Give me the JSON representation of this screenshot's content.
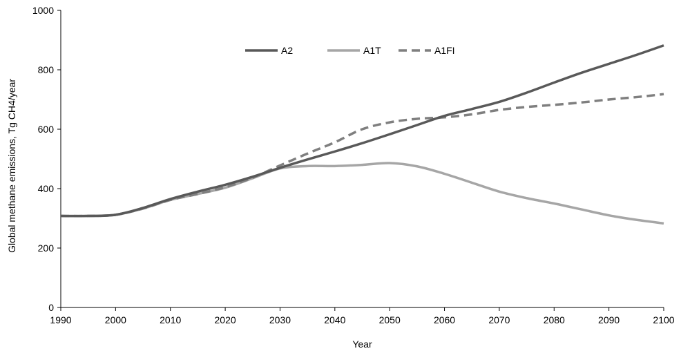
{
  "chart_data": {
    "type": "line",
    "title": "",
    "xlabel": "Year",
    "ylabel": "Global methane emissions, Tg CH4/year",
    "xlim": [
      1990,
      2100
    ],
    "ylim": [
      0,
      1000
    ],
    "x_ticks": [
      1990,
      2000,
      2010,
      2020,
      2030,
      2040,
      2050,
      2060,
      2070,
      2080,
      2090,
      2100
    ],
    "y_ticks": [
      0,
      200,
      400,
      600,
      800,
      1000
    ],
    "grid": false,
    "legend_position": "top-center",
    "x": [
      1990,
      1995,
      2000,
      2005,
      2010,
      2015,
      2020,
      2025,
      2030,
      2035,
      2040,
      2045,
      2050,
      2055,
      2060,
      2065,
      2070,
      2075,
      2080,
      2085,
      2090,
      2095,
      2100
    ],
    "series": [
      {
        "name": "A2",
        "color": "#595959",
        "dash": "solid",
        "values": [
          308,
          308,
          312,
          335,
          365,
          390,
          413,
          440,
          470,
          498,
          525,
          553,
          583,
          614,
          645,
          668,
          692,
          723,
          757,
          790,
          820,
          850,
          882
        ]
      },
      {
        "name": "A1T",
        "color": "#a6a6a6",
        "dash": "solid",
        "values": [
          308,
          308,
          312,
          333,
          362,
          382,
          403,
          435,
          468,
          476,
          476,
          480,
          486,
          475,
          450,
          420,
          390,
          368,
          350,
          330,
          310,
          295,
          283
        ]
      },
      {
        "name": "A1FI",
        "color": "#7f7f7f",
        "dash": "dashed",
        "values": [
          308,
          308,
          312,
          333,
          362,
          382,
          405,
          437,
          478,
          518,
          556,
          600,
          623,
          635,
          640,
          650,
          665,
          675,
          682,
          690,
          700,
          708,
          718
        ]
      }
    ]
  }
}
